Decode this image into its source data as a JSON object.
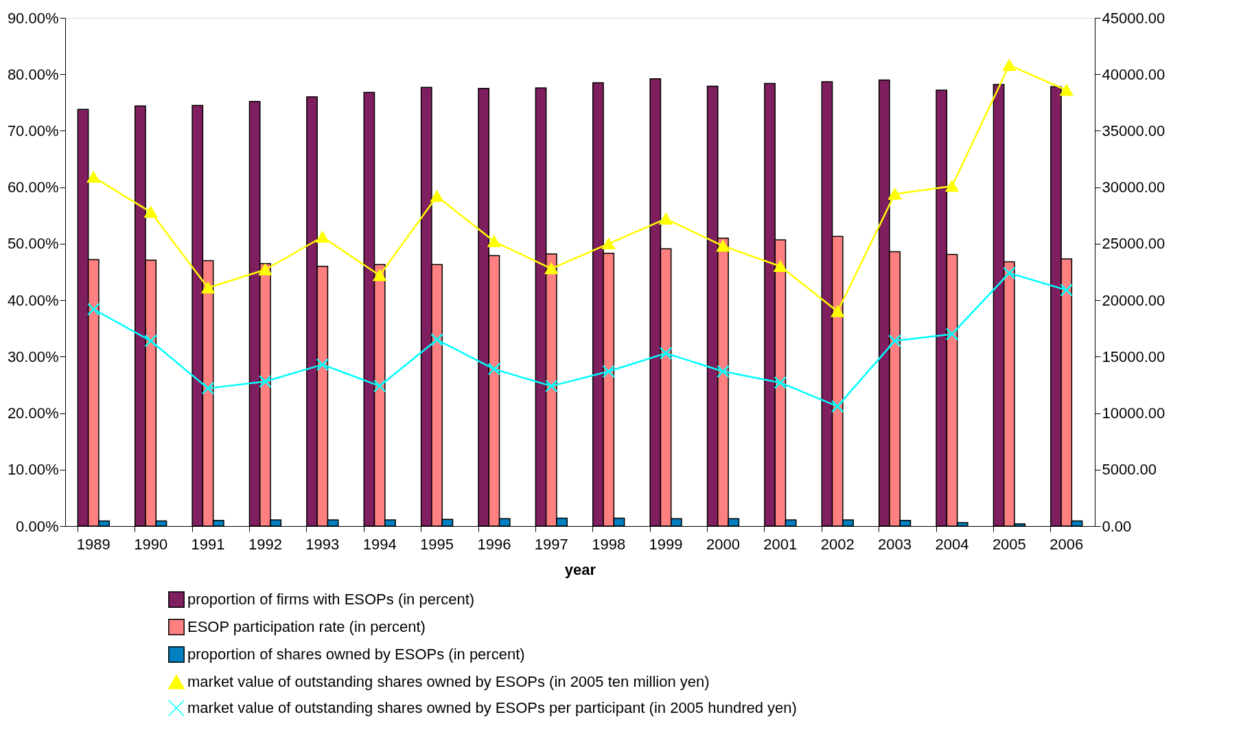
{
  "chart_data": {
    "type": "bar",
    "xlabel": "year",
    "categories": [
      "1989",
      "1990",
      "1991",
      "1992",
      "1993",
      "1994",
      "1995",
      "1996",
      "1997",
      "1998",
      "1999",
      "2000",
      "2001",
      "2002",
      "2003",
      "2004",
      "2005",
      "2006"
    ],
    "series": [
      {
        "name": "proportion of firms with ESOPs (in percent)",
        "color": "#7f1f5f",
        "values": [
          73.8,
          74.4,
          74.5,
          75.2,
          76.0,
          76.8,
          77.7,
          77.5,
          77.6,
          78.5,
          79.2,
          77.9,
          78.4,
          78.7,
          79.0,
          77.2,
          78.2,
          77.8
        ]
      },
      {
        "name": "ESOP participation rate (in percent)",
        "color": "#ff8080",
        "values": [
          47.2,
          47.1,
          47.0,
          46.5,
          46.0,
          46.3,
          46.3,
          47.9,
          48.2,
          48.3,
          49.1,
          51.0,
          50.7,
          51.3,
          48.6,
          48.1,
          46.8,
          47.3
        ]
      },
      {
        "name": "proportion of shares owned by ESOPs (in percent)",
        "color": "#0080c0",
        "values": [
          0.9,
          0.9,
          1.0,
          1.1,
          1.1,
          1.1,
          1.2,
          1.3,
          1.4,
          1.4,
          1.3,
          1.3,
          1.1,
          1.1,
          1.0,
          0.6,
          0.4,
          0.9
        ]
      },
      {
        "name": "market value of outstanding shares owned by ESOPs (in 2005 ten million yen)",
        "type": "line",
        "axis": "y2",
        "marker": "triangle",
        "color": "#ffff00",
        "values": [
          30900,
          27800,
          21100,
          22700,
          25600,
          22200,
          29200,
          25200,
          22800,
          25000,
          27200,
          24800,
          23000,
          19000,
          29400,
          30100,
          40800,
          38600
        ]
      },
      {
        "name": "market value of outstanding shares owned by ESOPs per participant (in 2005 hundred yen)",
        "type": "line",
        "axis": "y2",
        "marker": "cross",
        "color": "#00ffff",
        "values": [
          19200,
          16400,
          12200,
          12800,
          14300,
          12400,
          16500,
          13900,
          12400,
          13700,
          15300,
          13700,
          12700,
          10600,
          16400,
          17000,
          22400,
          20900
        ]
      }
    ],
    "ylim": [
      0,
      90
    ],
    "yticks": [
      {
        "value": 0,
        "label": "0.00%"
      },
      {
        "value": 10,
        "label": "10.00%"
      },
      {
        "value": 20,
        "label": "20.00%"
      },
      {
        "value": 30,
        "label": "30.00%"
      },
      {
        "value": 40,
        "label": "40.00%"
      },
      {
        "value": 50,
        "label": "50.00%"
      },
      {
        "value": 60,
        "label": "60.00%"
      },
      {
        "value": 70,
        "label": "70.00%"
      },
      {
        "value": 80,
        "label": "80.00%"
      },
      {
        "value": 90,
        "label": "90.00%"
      }
    ],
    "y2lim": [
      0,
      45000
    ],
    "y2ticks": [
      {
        "value": 0,
        "label": "0.00"
      },
      {
        "value": 5000,
        "label": "5000.00"
      },
      {
        "value": 10000,
        "label": "10000.00"
      },
      {
        "value": 15000,
        "label": "15000.00"
      },
      {
        "value": 20000,
        "label": "20000.00"
      },
      {
        "value": 25000,
        "label": "25000.00"
      },
      {
        "value": 30000,
        "label": "30000.00"
      },
      {
        "value": 35000,
        "label": "35000.00"
      },
      {
        "value": 40000,
        "label": "40000.00"
      },
      {
        "value": 45000,
        "label": "45000.00"
      }
    ],
    "grid": false,
    "legend": "bottom"
  }
}
